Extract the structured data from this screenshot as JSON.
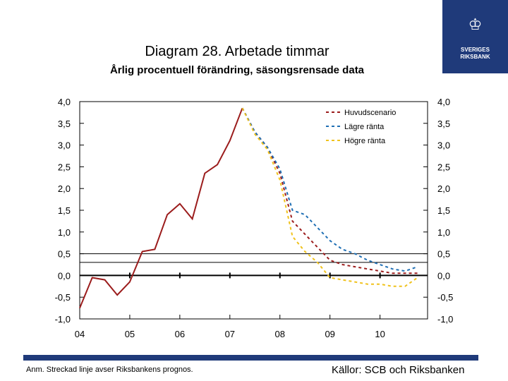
{
  "title": "Diagram 28. Arbetade timmar",
  "subtitle": "Årlig procentuell förändring, säsongsrensade data",
  "logo": {
    "line1": "SVERIGES",
    "line2": "RIKSBANK",
    "icon": "crown-emblem-icon"
  },
  "footnote": "Anm. Streckad linje avser Riksbankens prognos.",
  "source": "Källor: SCB och Riksbanken",
  "colors": {
    "actual": "#9b1c1c",
    "main": "#9b1c1c",
    "low": "#1f6fb4",
    "high": "#f0c21c",
    "brand": "#1f3a7a"
  },
  "chart_data": {
    "type": "line",
    "xlabels": [
      "04",
      "05",
      "06",
      "07",
      "08",
      "09",
      "10"
    ],
    "ylim": [
      -1.0,
      4.0
    ],
    "yticks_left": [
      "4,0",
      "3,5",
      "3,0",
      "2,5",
      "2,0",
      "1,5",
      "1,0",
      "0,5",
      "0,0",
      "-0,5",
      "-1,0"
    ],
    "yticks_right": [
      "4,0",
      "3,5",
      "3,0",
      "2,5",
      "2,0",
      "1,5",
      "1,0",
      "0,5",
      "0,0",
      "-0,5",
      "-1,0"
    ],
    "legend_position": "top-right",
    "series": [
      {
        "name": "",
        "style": "solid",
        "x": [
          2004.0,
          2004.25,
          2004.5,
          2004.75,
          2005.0,
          2005.25,
          2005.5,
          2005.75,
          2006.0,
          2006.25,
          2006.5,
          2006.75,
          2007.0,
          2007.25
        ],
        "values": [
          -0.75,
          -0.05,
          -0.1,
          -0.45,
          -0.15,
          0.55,
          0.6,
          1.4,
          1.65,
          1.3,
          2.35,
          2.55,
          3.1,
          3.85
        ]
      },
      {
        "name": "Huvudscenario",
        "style": "dashed",
        "x": [
          2007.25,
          2007.5,
          2007.75,
          2008.0,
          2008.25,
          2008.5,
          2008.75,
          2009.0,
          2009.25,
          2009.5,
          2009.75,
          2010.0,
          2010.25,
          2010.5,
          2010.75
        ],
        "values": [
          3.85,
          3.3,
          2.95,
          2.35,
          1.25,
          0.95,
          0.65,
          0.35,
          0.25,
          0.2,
          0.15,
          0.1,
          0.05,
          0.05,
          0.05
        ]
      },
      {
        "name": "Lägre ränta",
        "style": "dashed",
        "x": [
          2007.25,
          2007.5,
          2007.75,
          2008.0,
          2008.25,
          2008.5,
          2008.75,
          2009.0,
          2009.25,
          2009.5,
          2009.75,
          2010.0,
          2010.25,
          2010.5,
          2010.75
        ],
        "values": [
          3.85,
          3.3,
          2.95,
          2.45,
          1.5,
          1.4,
          1.1,
          0.8,
          0.6,
          0.5,
          0.35,
          0.25,
          0.15,
          0.1,
          0.2
        ]
      },
      {
        "name": "Högre ränta",
        "style": "dashed",
        "x": [
          2007.25,
          2007.5,
          2007.75,
          2008.0,
          2008.25,
          2008.5,
          2008.75,
          2009.0,
          2009.25,
          2009.5,
          2009.75,
          2010.0,
          2010.25,
          2010.5,
          2010.75
        ],
        "values": [
          3.85,
          3.25,
          2.9,
          2.2,
          0.9,
          0.55,
          0.3,
          -0.05,
          -0.1,
          -0.15,
          -0.2,
          -0.2,
          -0.25,
          -0.25,
          -0.05
        ]
      }
    ]
  }
}
